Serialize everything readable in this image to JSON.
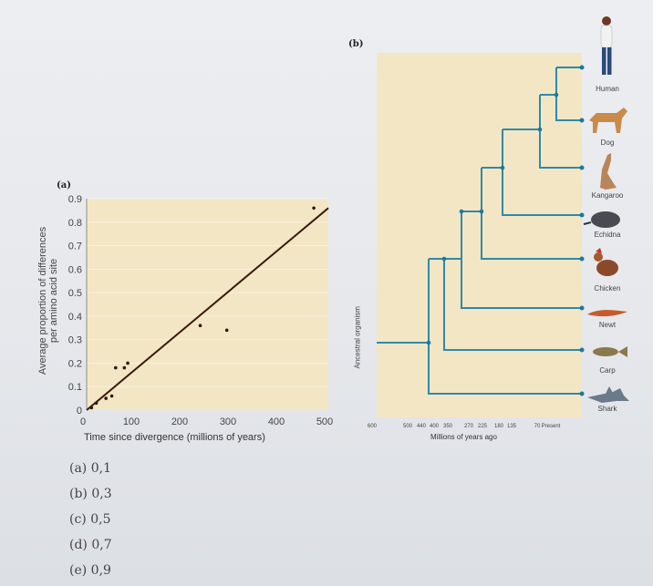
{
  "panel_a": {
    "label": "(a)",
    "ylabel_line1": "Average proportion of differences",
    "ylabel_line2": "per amino acid site",
    "xlabel": "Time since divergence (millions of years)",
    "yticks": [
      "0",
      "0.1",
      "0.2",
      "0.3",
      "0.4",
      "0.5",
      "0.6",
      "0.7",
      "0.8",
      "0.9"
    ],
    "xticks": [
      "0",
      "100",
      "200",
      "300",
      "400",
      "500"
    ]
  },
  "chart_data": {
    "type": "scatter",
    "xlabel": "Time since divergence (millions of years)",
    "ylabel": "Average proportion of differences per amino acid site",
    "xlim": [
      0,
      500
    ],
    "ylim": [
      0,
      0.9
    ],
    "points": [
      {
        "x": 10,
        "y": 0.01
      },
      {
        "x": 20,
        "y": 0.03
      },
      {
        "x": 40,
        "y": 0.05
      },
      {
        "x": 52,
        "y": 0.06
      },
      {
        "x": 60,
        "y": 0.18
      },
      {
        "x": 78,
        "y": 0.18
      },
      {
        "x": 85,
        "y": 0.2
      },
      {
        "x": 235,
        "y": 0.36
      },
      {
        "x": 290,
        "y": 0.34
      },
      {
        "x": 470,
        "y": 0.86
      }
    ],
    "trendline": {
      "x": [
        0,
        500
      ],
      "y": [
        0,
        0.86
      ]
    }
  },
  "panel_b": {
    "label": "(b)",
    "root_label": "Ancestral organism",
    "xlabel": "Millions of years ago",
    "xticks": [
      "600",
      "500",
      "440",
      "400",
      "350",
      "270",
      "225",
      "180",
      "135",
      "70",
      "Present"
    ],
    "taxa": [
      "Human",
      "Dog",
      "Kangaroo",
      "Echidna",
      "Chicken",
      "Newt",
      "Carp",
      "Shark"
    ]
  },
  "answers": [
    "(a) 0,1",
    "(b) 0,3",
    "(c) 0,5",
    "(d) 0,7",
    "(e) 0,9"
  ],
  "colors": {
    "plot_bg": "#f3e6c4",
    "tree": "#2f8aa8",
    "line": "#3a1a0e",
    "node": "#1d7a98"
  }
}
